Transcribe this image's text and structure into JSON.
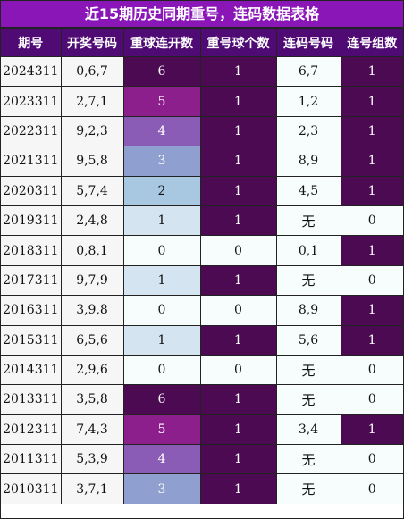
{
  "title": "近15期历史同期重号，连码数据表格",
  "columns": [
    "期号",
    "开奖号码",
    "重球连开数",
    "重号球个数",
    "连码号码",
    "连号组数"
  ],
  "colors": {
    "title_bg": "#8a16b8",
    "header_bg": "#4f0a74",
    "dark_cell": "#4b0a52",
    "streak_6": "#4b0a52",
    "streak_5": "#8c1f8c",
    "streak_4": "#8a5cb5",
    "streak_3": "#8f9fcf",
    "streak_2": "#a8c8e2",
    "streak_1": "#d4e4f0",
    "streak_0": "#f7fdfd"
  },
  "rows": [
    {
      "period": "2024311",
      "numbers": "0,6,7",
      "streak": "6",
      "repeat": "1",
      "consec": "6,7",
      "groups": "1"
    },
    {
      "period": "2023311",
      "numbers": "2,7,1",
      "streak": "5",
      "repeat": "1",
      "consec": "1,2",
      "groups": "1"
    },
    {
      "period": "2022311",
      "numbers": "9,2,3",
      "streak": "4",
      "repeat": "1",
      "consec": "2,3",
      "groups": "1"
    },
    {
      "period": "2021311",
      "numbers": "9,5,8",
      "streak": "3",
      "repeat": "1",
      "consec": "8,9",
      "groups": "1"
    },
    {
      "period": "2020311",
      "numbers": "5,7,4",
      "streak": "2",
      "repeat": "1",
      "consec": "4,5",
      "groups": "1"
    },
    {
      "period": "2019311",
      "numbers": "2,4,8",
      "streak": "1",
      "repeat": "1",
      "consec": "无",
      "groups": "0"
    },
    {
      "period": "2018311",
      "numbers": "0,8,1",
      "streak": "0",
      "repeat": "0",
      "consec": "0,1",
      "groups": "1"
    },
    {
      "period": "2017311",
      "numbers": "9,7,9",
      "streak": "1",
      "repeat": "1",
      "consec": "无",
      "groups": "0"
    },
    {
      "period": "2016311",
      "numbers": "3,9,8",
      "streak": "0",
      "repeat": "0",
      "consec": "8,9",
      "groups": "1"
    },
    {
      "period": "2015311",
      "numbers": "6,5,6",
      "streak": "1",
      "repeat": "1",
      "consec": "5,6",
      "groups": "1"
    },
    {
      "period": "2014311",
      "numbers": "2,9,6",
      "streak": "0",
      "repeat": "0",
      "consec": "无",
      "groups": "0"
    },
    {
      "period": "2013311",
      "numbers": "3,5,8",
      "streak": "6",
      "repeat": "1",
      "consec": "无",
      "groups": "0"
    },
    {
      "period": "2012311",
      "numbers": "7,4,3",
      "streak": "5",
      "repeat": "1",
      "consec": "3,4",
      "groups": "1"
    },
    {
      "period": "2011311",
      "numbers": "5,3,9",
      "streak": "4",
      "repeat": "1",
      "consec": "无",
      "groups": "0"
    },
    {
      "period": "2010311",
      "numbers": "3,7,1",
      "streak": "3",
      "repeat": "1",
      "consec": "无",
      "groups": "0"
    }
  ]
}
